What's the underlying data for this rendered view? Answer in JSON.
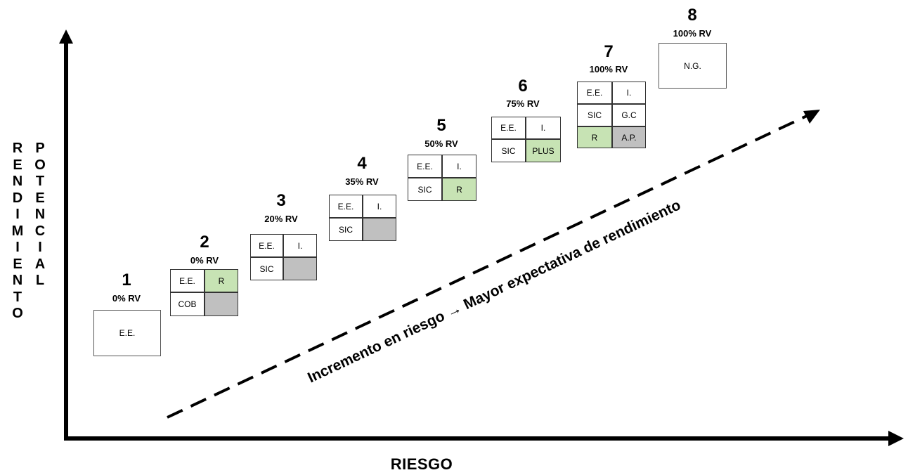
{
  "axes": {
    "y_label_col1": [
      "R",
      "E",
      "N",
      "D",
      "I",
      "M",
      "I",
      "E",
      "N",
      "T",
      "O"
    ],
    "y_label_col2": [
      "P",
      "O",
      "T",
      "E",
      "N",
      "C",
      "I",
      "A",
      "L"
    ],
    "x_label": "RIESGO"
  },
  "trend": {
    "text": "Incremento en riesgo → Mayor expectativa de rendimiento"
  },
  "steps": [
    {
      "num": "1",
      "rv": "0% RV",
      "cells": [
        [
          "E.E."
        ]
      ]
    },
    {
      "num": "2",
      "rv": "0% RV",
      "cells": [
        [
          "E.E.",
          "R"
        ],
        [
          "COB",
          ""
        ]
      ]
    },
    {
      "num": "3",
      "rv": "20% RV",
      "cells": [
        [
          "E.E.",
          "I."
        ],
        [
          "SIC",
          ""
        ]
      ]
    },
    {
      "num": "4",
      "rv": "35% RV",
      "cells": [
        [
          "E.E.",
          "I."
        ],
        [
          "SIC",
          ""
        ]
      ]
    },
    {
      "num": "5",
      "rv": "50% RV",
      "cells": [
        [
          "E.E.",
          "I."
        ],
        [
          "SIC",
          "R"
        ]
      ]
    },
    {
      "num": "6",
      "rv": "75% RV",
      "cells": [
        [
          "E.E.",
          "I."
        ],
        [
          "SIC",
          "PLUS"
        ]
      ]
    },
    {
      "num": "7",
      "rv": "100% RV",
      "cells": [
        [
          "E.E.",
          "I."
        ],
        [
          "SIC",
          "G.C"
        ],
        [
          "R",
          "A.P."
        ]
      ]
    },
    {
      "num": "8",
      "rv": "100% RV",
      "cells": [
        [
          "N.G."
        ]
      ]
    }
  ],
  "colors": {
    "green_cell": "#c7e3b4",
    "grey_cell": "#c0c0c0",
    "axis": "#000000"
  }
}
